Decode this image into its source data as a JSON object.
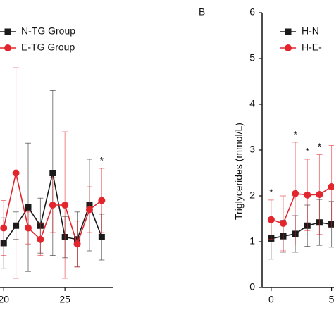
{
  "chart_data": [
    {
      "type": "line",
      "x": [
        20,
        21,
        22,
        23,
        24,
        25,
        26,
        27,
        28
      ],
      "series": [
        {
          "name": "N-TG Group",
          "color": "#1a1a1a",
          "marker": "square",
          "values": [
            0.97,
            1.35,
            1.75,
            1.35,
            2.5,
            1.1,
            1.05,
            1.8,
            1.1
          ],
          "errors": [
            0.55,
            0.3,
            1.4,
            0.6,
            1.8,
            0.45,
            0.6,
            1.0,
            0.5
          ]
        },
        {
          "name": "E-TG Group",
          "color": "#e3262e",
          "marker": "circle",
          "values": [
            1.3,
            2.5,
            1.3,
            1.05,
            1.8,
            1.8,
            0.95,
            1.7,
            1.9
          ],
          "errors": [
            0.6,
            2.3,
            0.35,
            0.35,
            0.6,
            1.6,
            0.5,
            0.5,
            0.7
          ]
        }
      ],
      "annotations": [
        {
          "text": "*",
          "x": 28
        }
      ],
      "xlim": [
        19.7,
        28.9
      ],
      "xticks": [
        20,
        25
      ],
      "ylim": [
        0,
        6
      ]
    },
    {
      "type": "line",
      "panel_label": "B",
      "ylabel": "Triglycerides (mmol/L)",
      "x": [
        0,
        1,
        2,
        3,
        4,
        5
      ],
      "series": [
        {
          "name": "H-N",
          "color": "#1a1a1a",
          "marker": "square",
          "values": [
            1.07,
            1.12,
            1.17,
            1.35,
            1.42,
            1.38
          ],
          "errors": [
            0.45,
            0.35,
            0.4,
            0.45,
            0.5,
            0.5
          ]
        },
        {
          "name": "H-E-",
          "color": "#e3262e",
          "marker": "circle",
          "values": [
            1.48,
            1.4,
            2.05,
            2.02,
            2.03,
            2.2
          ],
          "errors": [
            0.43,
            0.6,
            1.12,
            0.78,
            0.87,
            0.9
          ]
        }
      ],
      "annotations": [
        {
          "text": "*",
          "x": 0
        },
        {
          "text": "*",
          "x": 2
        },
        {
          "text": "*",
          "x": 3
        },
        {
          "text": "*",
          "x": 4
        }
      ],
      "xlim": [
        -0.75,
        5.2
      ],
      "xticks": [
        0,
        5
      ],
      "ylim": [
        0,
        6
      ],
      "yticks": [
        0,
        1,
        2,
        3,
        4,
        5,
        6
      ]
    }
  ]
}
